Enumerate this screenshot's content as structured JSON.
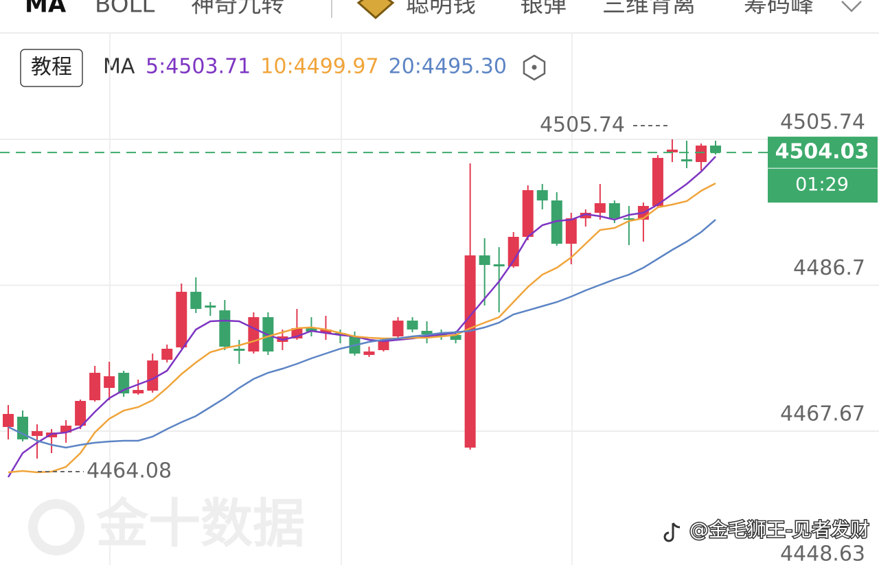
{
  "tabs": [
    "MA",
    "BOLL",
    "神奇九转",
    "聪明钱",
    "银弹",
    "三维背离",
    "筹码峰"
  ],
  "header": {
    "tutorial_button": "教程",
    "indicator": "MA"
  },
  "watermark": "金十数据",
  "credit": "@金毛狮王-见者发财",
  "chart_data": {
    "type": "candlestick",
    "up_color": "#e23a50",
    "down_color": "#3aa36c",
    "open": [
      4468.21,
      4469.55,
      4467.04,
      4466.86,
      4467.49,
      4468.38,
      4471.7,
      4473.31,
      4475.28,
      4472.59,
      4472.95,
      4476.98,
      4478.6,
      4485.85,
      4484.06,
      4483.43,
      4478.42,
      4478.06,
      4482.54,
      4479.31,
      4479.76,
      4481.1,
      4480.48,
      4480.48,
      4480.03,
      4477.61,
      4478.24,
      4480.03,
      4482.09,
      4480.75,
      4480.39,
      4480.21,
      4465.52,
      4490.6,
      4489.44,
      4489.17,
      4493.02,
      4499.11,
      4497.77,
      4492.12,
      4495.44,
      4496.16,
      4497.41,
      4495.44,
      4495.26,
      4497.05,
      4504.04,
      4503.14,
      4502.78,
      4504.93
    ],
    "high": [
      4471.07,
      4470.36,
      4468.56,
      4467.94,
      4469.1,
      4471.79,
      4476.18,
      4476.72,
      4475.55,
      4474.39,
      4477.79,
      4478.96,
      4486.93,
      4487.73,
      4484.51,
      4484.78,
      4479.58,
      4483.17,
      4483.17,
      4480.93,
      4483.61,
      4482.54,
      4482.72,
      4480.93,
      4480.66,
      4478.69,
      4479.85,
      4482.54,
      4482.54,
      4482.0,
      4480.93,
      4480.75,
      4502.6,
      4492.84,
      4491.68,
      4493.65,
      4499.74,
      4499.92,
      4498.84,
      4496.16,
      4496.6,
      4499.92,
      4497.77,
      4497.05,
      4497.5,
      4503.68,
      4505.74,
      4505.56,
      4505.2,
      4505.56
    ],
    "low": [
      4466.59,
      4466.32,
      4464.08,
      4464.8,
      4466.15,
      4467.94,
      4471.52,
      4471.7,
      4472.15,
      4472.42,
      4472.68,
      4476.63,
      4478.42,
      4483.08,
      4482.72,
      4478.24,
      4476.45,
      4477.79,
      4477.61,
      4478.24,
      4479.58,
      4480.03,
      4479.58,
      4479.13,
      4477.52,
      4477.34,
      4478.06,
      4479.85,
      4480.57,
      4479.13,
      4479.58,
      4479.13,
      4465.25,
      4484.06,
      4483.17,
      4488.99,
      4492.57,
      4496.6,
      4491.85,
      4489.44,
      4494.36,
      4495.26,
      4494.81,
      4491.94,
      4492.39,
      4496.87,
      4502.78,
      4501.98,
      4501.71,
      4503.77
    ],
    "close": [
      4469.91,
      4466.59,
      4467.67,
      4467.49,
      4468.38,
      4471.61,
      4475.28,
      4474.83,
      4472.59,
      4473.04,
      4476.89,
      4478.42,
      4485.85,
      4483.61,
      4483.79,
      4478.69,
      4478.15,
      4482.54,
      4478.06,
      4480.03,
      4481.1,
      4480.66,
      4480.93,
      4480.21,
      4477.79,
      4478.06,
      4479.4,
      4482.09,
      4480.93,
      4480.3,
      4480.03,
      4479.58,
      4490.6,
      4489.35,
      4489.17,
      4493.02,
      4499.11,
      4497.77,
      4492.12,
      4495.44,
      4496.16,
      4497.41,
      4495.44,
      4495.26,
      4497.05,
      4503.32,
      4504.4,
      4502.87,
      4504.93,
      4504.03
    ],
    "series": [
      {
        "name": "5:4503.71",
        "color": "#7d35c2",
        "values": [
          4461.67,
          4464.8,
          4466.15,
          4467.31,
          4467.49,
          4468.21,
          4470.18,
          4471.97,
          4473.04,
          4473.76,
          4474.48,
          4475.55,
          4478.24,
          4480.93,
          4482.0,
          4482.09,
          4482.0,
          4481.1,
          4480.21,
          4479.58,
          4480.03,
          4480.75,
          4480.48,
          4480.21,
          4480.03,
          4479.58,
          4479.4,
          4479.58,
          4479.76,
          4480.03,
          4480.3,
          4480.48,
          4482.72,
          4484.96,
          4487.2,
          4489.88,
          4493.02,
          4494.54,
          4495.08,
          4495.26,
          4495.98,
          4495.71,
          4495.26,
          4495.89,
          4496.16,
          4497.23,
          4498.57,
          4499.92,
          4501.53,
          4503.5
        ]
      },
      {
        "name": "10:4499.97",
        "color": "#f0a43a",
        "values": [
          4462.29,
          4462.47,
          4462.29,
          4462.38,
          4463.01,
          4464.8,
          4467.49,
          4469.28,
          4470.36,
          4470.8,
          4471.7,
          4473.31,
          4475.1,
          4476.63,
          4477.97,
          4478.51,
          4478.87,
          4479.4,
          4480.03,
          4480.57,
          4481.1,
          4481.2,
          4480.93,
          4480.48,
          4480.03,
          4479.85,
          4479.76,
          4479.76,
          4479.85,
          4479.85,
          4480.03,
          4480.21,
          4481.1,
          4481.82,
          4482.54,
          4484.51,
          4486.48,
          4488.09,
          4488.99,
          4490.33,
          4492.12,
          4493.92,
          4494.18,
          4495.08,
          4495.44,
          4496.87,
          4497.23,
          4497.68,
          4499.02,
          4500.01
        ]
      },
      {
        "name": "20:4495.30",
        "color": "#5c84c4",
        "values": [
          4468.21,
          4467.31,
          4466.41,
          4465.88,
          4465.52,
          4465.88,
          4466.15,
          4466.32,
          4466.41,
          4466.41,
          4466.95,
          4467.94,
          4468.83,
          4469.64,
          4470.8,
          4471.97,
          4473.31,
          4474.48,
          4475.28,
          4475.82,
          4476.45,
          4477.16,
          4477.79,
          4478.42,
          4478.87,
          4479.31,
          4479.58,
          4479.76,
          4480.03,
          4480.21,
          4480.48,
          4480.57,
          4480.75,
          4481.2,
          4481.82,
          4482.9,
          4483.43,
          4483.97,
          4484.51,
          4485.23,
          4486.03,
          4486.75,
          4487.47,
          4488.09,
          4488.99,
          4490.15,
          4491.32,
          4492.39,
          4493.65,
          4495.26
        ]
      }
    ],
    "ylim": [
      4450.2,
      4512.28
    ],
    "yticks": [
      4505.74,
      4486.7,
      4467.67,
      4448.63
    ],
    "grid": true,
    "high_mark": 4505.74,
    "low_mark": 4464.08,
    "current_price": 4504.03,
    "countdown": "01:29",
    "current_color": "#3daa6b"
  }
}
